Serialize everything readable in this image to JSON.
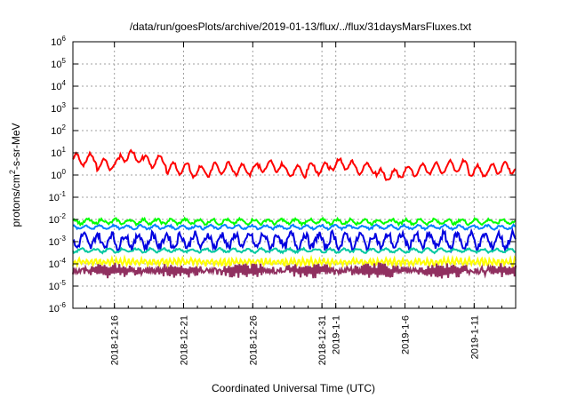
{
  "chart_data": {
    "type": "line",
    "title": "/data/run/goesPlots/archive/2019-01-13/flux/../flux/31daysMarsFluxes.txt",
    "xlabel": "Coordinated Universal Time (UTC)",
    "ylabel": {
      "base": "protons/cm",
      "sup": "2",
      "rest": "-s-sr-MeV"
    },
    "yscale": "log",
    "ylim": [
      1e-06,
      1000000.0
    ],
    "xlim": [
      "2018-12-13",
      "2019-01-14"
    ],
    "grid": true,
    "legend": "none",
    "x_ticks": [
      {
        "x": "2018-12-16",
        "label": "2018-12-16"
      },
      {
        "x": "2018-12-21",
        "label": "2018-12-21"
      },
      {
        "x": "2018-12-26",
        "label": "2018-12-26"
      },
      {
        "x": "2018-12-31",
        "label": "2018-12-31"
      },
      {
        "x": "2019-01-01",
        "label": "2019-1-1"
      },
      {
        "x": "2019-01-06",
        "label": "2019-1-6"
      },
      {
        "x": "2019-01-11",
        "label": "2019-1-11"
      }
    ],
    "y_ticks": [
      {
        "exp": -6
      },
      {
        "exp": -5
      },
      {
        "exp": -4
      },
      {
        "exp": -3
      },
      {
        "exp": -2
      },
      {
        "exp": -1
      },
      {
        "exp": 0
      },
      {
        "exp": 1
      },
      {
        "exp": 2
      },
      {
        "exp": 3
      },
      {
        "exp": 4
      },
      {
        "exp": 5
      },
      {
        "exp": 6
      }
    ],
    "series": [
      {
        "color": "#ff0000",
        "level": 2.0,
        "amp": 0.55,
        "period": 1.0,
        "x": [
          "2018-12-13",
          "2019-01-14"
        ],
        "notes_values": [
          5,
          3,
          7,
          4,
          2,
          1.5,
          2,
          1.8,
          2.5,
          1.5,
          2,
          3,
          2,
          1,
          1.5,
          2,
          2.5,
          1.5,
          2
        ]
      },
      {
        "color": "#00ff00",
        "level": 0.008,
        "amp": 0.2,
        "period": 1.0,
        "x": [
          "2018-12-13",
          "2019-01-14"
        ]
      },
      {
        "color": "#0080ff",
        "level": 0.0045,
        "amp": 0.15,
        "period": 1.0,
        "x": [
          "2018-12-13",
          "2019-01-14"
        ]
      },
      {
        "color": "#0000e0",
        "level": 0.0011,
        "amp": 0.6,
        "period": 1.0,
        "x": [
          "2018-12-13",
          "2019-01-14"
        ]
      },
      {
        "color": "#00c8a0",
        "level": 0.0004,
        "amp": 0.15,
        "period": 1.0,
        "x": [
          "2018-12-13",
          "2019-01-14"
        ]
      },
      {
        "color": "#ffff00",
        "level": 0.00012,
        "amp": 0.25,
        "period": 0.3,
        "x": [
          "2018-12-13",
          "2019-01-14"
        ]
      },
      {
        "color": "#903060",
        "level": 5e-05,
        "amp": 0.45,
        "period": 0.15,
        "x": [
          "2018-12-13",
          "2019-01-14"
        ]
      }
    ]
  }
}
